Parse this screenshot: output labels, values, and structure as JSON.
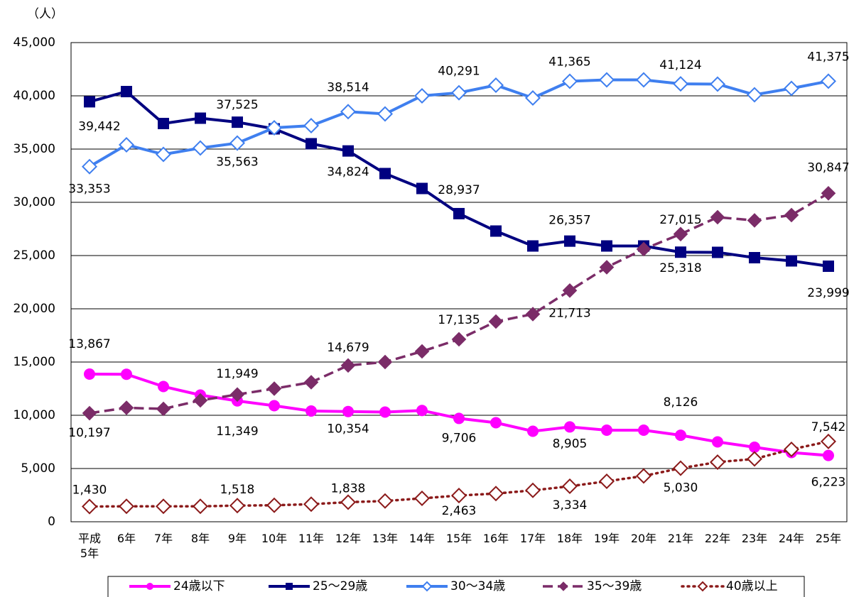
{
  "chart_data": {
    "type": "line",
    "y_unit": "（人）",
    "categories": [
      "平成\n5年",
      "6年",
      "7年",
      "8年",
      "9年",
      "10年",
      "11年",
      "12年",
      "13年",
      "14年",
      "15年",
      "16年",
      "17年",
      "18年",
      "19年",
      "20年",
      "21年",
      "22年",
      "23年",
      "24年",
      "25年"
    ],
    "ylim": [
      0,
      45000
    ],
    "yticks": [
      0,
      {
        "value": 5000,
        "label": "5,000"
      },
      {
        "value": 10000,
        "label": "10,000"
      },
      {
        "value": 15000,
        "label": "15,000"
      },
      {
        "value": 20000,
        "label": "20,000"
      },
      {
        "value": 25000,
        "label": "25,000"
      },
      {
        "value": 30000,
        "label": "30,000"
      },
      {
        "value": 35000,
        "label": "35,000"
      },
      {
        "value": 40000,
        "label": "40,000"
      },
      {
        "value": 45000,
        "label": "45,000"
      }
    ],
    "grid": true,
    "series": [
      {
        "name": "24歳以下",
        "color": "#ff00ff",
        "marker": "circle",
        "line_style": "solid",
        "values": [
          13867,
          13850,
          12700,
          11900,
          11349,
          10900,
          10400,
          10354,
          10300,
          10450,
          9706,
          9300,
          8500,
          8905,
          8600,
          8600,
          8126,
          7500,
          7000,
          6500,
          6223
        ],
        "value_labels": [
          "13,867",
          null,
          null,
          null,
          "11,349",
          null,
          null,
          "10,354",
          null,
          null,
          "9,706",
          null,
          null,
          "8,905",
          null,
          null,
          "8,126",
          null,
          null,
          null,
          "6,223"
        ]
      },
      {
        "name": "25～29歳",
        "color": "#000080",
        "marker": "square",
        "line_style": "solid",
        "values": [
          39442,
          40400,
          37400,
          37900,
          37525,
          36900,
          35500,
          34824,
          32700,
          31300,
          28937,
          27300,
          25900,
          26357,
          25900,
          25900,
          25318,
          25300,
          24800,
          24500,
          23999
        ],
        "value_labels": [
          "39,442",
          null,
          null,
          null,
          "37,525",
          null,
          null,
          "34,824",
          null,
          null,
          "28,937",
          null,
          null,
          "26,357",
          null,
          null,
          "25,318",
          null,
          null,
          null,
          "23,999"
        ]
      },
      {
        "name": "30～34歳",
        "color": "#3f7fef",
        "marker": "open-diamond",
        "line_style": "solid",
        "values": [
          33353,
          35400,
          34500,
          35100,
          35563,
          37000,
          37200,
          38514,
          38300,
          40000,
          40291,
          41000,
          39800,
          41365,
          41500,
          41500,
          41124,
          41100,
          40100,
          40700,
          41375
        ],
        "value_labels": [
          "33,353",
          null,
          null,
          null,
          "35,563",
          null,
          null,
          "38,514",
          null,
          null,
          "40,291",
          null,
          null,
          "41,365",
          null,
          null,
          "41,124",
          null,
          null,
          null,
          "41,375"
        ]
      },
      {
        "name": "35～39歳",
        "color": "#7b2c68",
        "marker": "diamond",
        "line_style": "dashed",
        "values": [
          10197,
          10700,
          10600,
          11400,
          11949,
          12500,
          13100,
          14679,
          15000,
          16000,
          17135,
          18800,
          19500,
          21713,
          23900,
          25600,
          27015,
          28600,
          28300,
          28800,
          30847
        ],
        "value_labels": [
          "10,197",
          null,
          null,
          null,
          "11,949",
          null,
          null,
          "14,679",
          null,
          null,
          "17,135",
          null,
          null,
          "21,713",
          null,
          null,
          "27,015",
          null,
          null,
          null,
          "30,847"
        ]
      },
      {
        "name": "40歳以上",
        "color": "#8b1a1a",
        "marker": "open-diamond",
        "line_style": "dotted",
        "values": [
          1430,
          1450,
          1450,
          1450,
          1518,
          1550,
          1650,
          1838,
          1950,
          2200,
          2463,
          2650,
          2950,
          3334,
          3800,
          4300,
          5030,
          5600,
          5900,
          6800,
          7542
        ],
        "value_labels": [
          "1,430",
          null,
          null,
          null,
          "1,518",
          null,
          null,
          "1,838",
          null,
          null,
          "2,463",
          null,
          null,
          "3,334",
          null,
          null,
          "5,030",
          null,
          null,
          null,
          "7,542"
        ]
      }
    ]
  }
}
